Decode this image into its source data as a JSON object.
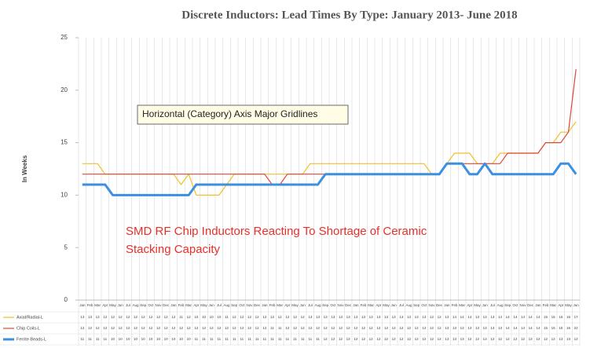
{
  "chart_data": {
    "type": "line",
    "title": "Discrete Inductors: Lead Times By Type:  January 2013- June 2018",
    "y_label": "In Weeks",
    "tooltip": "Horizontal (Category) Axis Major Gridlines",
    "annotation_lines": [
      "SMD RF Chip Inductors Reacting To Shortage of Ceramic",
      "Stacking Capacity"
    ],
    "categories": [
      "Jan",
      "Feb",
      "Mar",
      "Apr",
      "May",
      "Jun",
      "Jul",
      "Aug",
      "Sep",
      "Oct",
      "Nov",
      "Dec",
      "Jan",
      "Feb",
      "Mar",
      "Apr",
      "May",
      "Jun",
      "Jul",
      "Aug",
      "Sep",
      "Oct",
      "Nov",
      "Dec",
      "Jan",
      "Feb",
      "Mar",
      "Apr",
      "May",
      "Jun",
      "Jul",
      "Aug",
      "Sep",
      "Oct",
      "Nov",
      "Dec",
      "Jan",
      "Feb",
      "Mar",
      "Apr",
      "May",
      "Jun",
      "Jul",
      "Aug",
      "Sep",
      "Oct",
      "Nov",
      "Dec",
      "Jan",
      "Feb",
      "Mar",
      "Apr",
      "May",
      "Jun",
      "Jul",
      "Aug",
      "Sep",
      "Oct",
      "Nov",
      "Dec",
      "Jan",
      "Feb",
      "Mar",
      "Apr",
      "May",
      "Jun"
    ],
    "series": [
      {
        "name": "Axial/Radial-L",
        "color": "#f0c02a",
        "width": 1.2,
        "values": [
          13,
          13,
          13,
          12,
          12,
          12,
          12,
          12,
          12,
          12,
          12,
          12,
          12,
          11,
          12,
          10,
          10,
          10,
          10,
          11,
          12,
          12,
          12,
          12,
          12,
          12,
          12,
          12,
          12,
          12,
          13,
          13,
          13,
          13,
          13,
          13,
          13,
          13,
          13,
          13,
          13,
          13,
          13,
          13,
          13,
          13,
          12,
          12,
          13,
          14,
          14,
          14,
          13,
          13,
          13,
          14,
          14,
          14,
          14,
          14,
          14,
          15,
          15,
          16,
          16,
          17
        ]
      },
      {
        "name": "Chip Coils-L",
        "color": "#e0473a",
        "width": 1.2,
        "values": [
          12,
          12,
          12,
          12,
          12,
          12,
          12,
          12,
          12,
          12,
          12,
          12,
          12,
          12,
          12,
          12,
          12,
          12,
          12,
          12,
          12,
          12,
          12,
          12,
          12,
          11,
          11,
          12,
          12,
          12,
          12,
          12,
          12,
          12,
          12,
          12,
          12,
          12,
          12,
          12,
          12,
          12,
          12,
          12,
          12,
          12,
          12,
          12,
          13,
          13,
          13,
          13,
          13,
          13,
          13,
          13,
          14,
          14,
          14,
          14,
          14,
          15,
          15,
          15,
          16,
          22
        ]
      },
      {
        "name": "Ferrite Beads-L",
        "color": "#3d8fe0",
        "width": 3,
        "values": [
          11,
          11,
          11,
          11,
          10,
          10,
          10,
          10,
          10,
          10,
          10,
          10,
          10,
          10,
          10,
          11,
          11,
          11,
          11,
          11,
          11,
          11,
          11,
          11,
          11,
          11,
          11,
          11,
          11,
          11,
          11,
          11,
          12,
          12,
          12,
          12,
          12,
          12,
          12,
          12,
          12,
          12,
          12,
          12,
          12,
          12,
          12,
          12,
          13,
          13,
          13,
          12,
          12,
          13,
          12,
          12,
          12,
          12,
          12,
          12,
          12,
          12,
          12,
          13,
          13,
          12
        ]
      }
    ],
    "ylim": [
      0,
      25
    ],
    "yticks": [
      0,
      5,
      10,
      15,
      20,
      25
    ],
    "category_grid": true
  }
}
